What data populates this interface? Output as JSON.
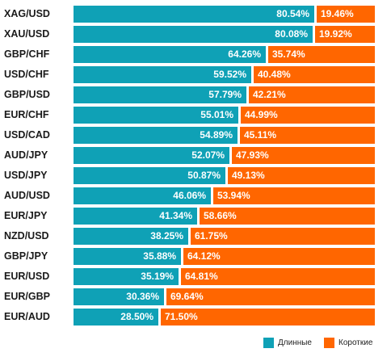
{
  "chart_data": {
    "type": "bar",
    "categories": [
      "XAG/USD",
      "XAU/USD",
      "GBP/CHF",
      "USD/CHF",
      "GBP/USD",
      "EUR/CHF",
      "USD/CAD",
      "AUD/JPY",
      "USD/JPY",
      "AUD/USD",
      "EUR/JPY",
      "NZD/USD",
      "GBP/JPY",
      "EUR/USD",
      "EUR/GBP",
      "EUR/AUD"
    ],
    "series": [
      {
        "name": "Длинные",
        "color": "#0fa1b6",
        "values": [
          80.54,
          80.08,
          64.26,
          59.52,
          57.79,
          55.01,
          54.89,
          52.07,
          50.87,
          46.06,
          41.34,
          38.25,
          35.88,
          35.19,
          30.36,
          28.5
        ],
        "labels": [
          "80.54%",
          "80.08%",
          "64.26%",
          "59.52%",
          "57.79%",
          "55.01%",
          "54.89%",
          "52.07%",
          "50.87%",
          "46.06%",
          "41.34%",
          "38.25%",
          "35.88%",
          "35.19%",
          "30.36%",
          "28.50%"
        ]
      },
      {
        "name": "Короткие",
        "color": "#ff6600",
        "values": [
          19.46,
          19.92,
          35.74,
          40.48,
          42.21,
          44.99,
          45.11,
          47.93,
          49.13,
          53.94,
          58.66,
          61.75,
          64.12,
          64.81,
          69.64,
          71.5
        ],
        "labels": [
          "19.46%",
          "19.92%",
          "35.74%",
          "40.48%",
          "42.21%",
          "44.99%",
          "45.11%",
          "47.93%",
          "49.13%",
          "53.94%",
          "58.66%",
          "61.75%",
          "64.12%",
          "64.81%",
          "69.64%",
          "71.50%"
        ]
      }
    ],
    "stacked": true,
    "orientation": "horizontal",
    "xlim": [
      0,
      100
    ],
    "grid": false,
    "legend_placement": "bottom-right"
  },
  "legend": [
    {
      "label": "Длинные",
      "color": "#0fa1b6"
    },
    {
      "label": "Короткие",
      "color": "#ff6600"
    }
  ]
}
